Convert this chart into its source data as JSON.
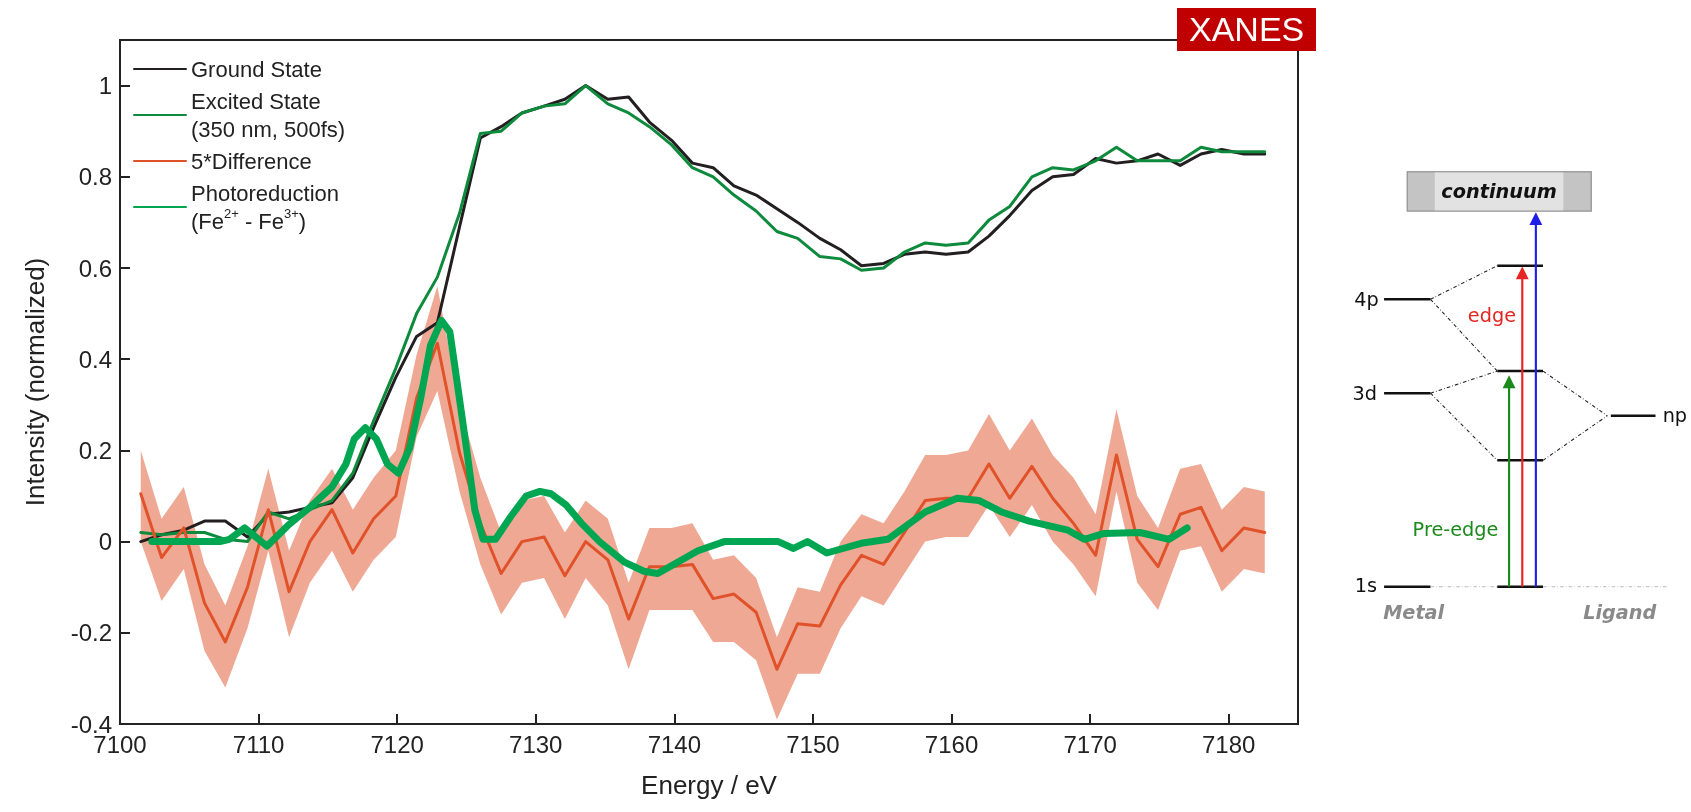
{
  "chart_data": {
    "type": "line",
    "xlabel": "Energy / eV",
    "ylabel": "Intensity (normalized)",
    "xlim": [
      7100,
      7185
    ],
    "xticks": [
      7100,
      7110,
      7120,
      7130,
      7140,
      7150,
      7160,
      7170,
      7180
    ],
    "ylim": [
      -0.4,
      1.1
    ],
    "yticks": [
      -0.4,
      -0.2,
      0,
      0.2,
      0.4,
      0.6,
      0.8,
      1
    ],
    "grid": false,
    "legend": "top left",
    "marker": "none",
    "line_style": "solid",
    "x": [
      7101.5,
      7103.0,
      7104.6,
      7106.1,
      7107.6,
      7109.2,
      7110.7,
      7112.2,
      7113.7,
      7115.3,
      7116.8,
      7118.3,
      7119.9,
      7121.4,
      7122.9,
      7124.5,
      7126.0,
      7127.5,
      7129.0,
      7130.6,
      7132.1,
      7133.6,
      7135.2,
      7136.7,
      7138.2,
      7139.8,
      7141.3,
      7142.8,
      7144.3,
      7145.9,
      7147.4,
      7148.9,
      7150.5,
      7152.0,
      7153.5,
      7155.1,
      7156.6,
      7158.1,
      7159.6,
      7161.2,
      7162.7,
      7164.2,
      7165.8,
      7167.3,
      7168.8,
      7170.4,
      7171.9,
      7173.4,
      7174.9,
      7176.5,
      7178.0,
      7179.5,
      7181.1,
      7182.6
    ],
    "series": [
      {
        "name": "Ground State",
        "color": "#231f20",
        "values": [
          0.0,
          0.015,
          0.025,
          0.045,
          0.045,
          0.01,
          0.06,
          0.065,
          0.075,
          0.085,
          0.14,
          0.25,
          0.36,
          0.45,
          0.48,
          0.69,
          0.885,
          0.91,
          0.94,
          0.955,
          0.97,
          1.0,
          0.97,
          0.975,
          0.92,
          0.88,
          0.83,
          0.82,
          0.78,
          0.76,
          0.73,
          0.7,
          0.665,
          0.64,
          0.605,
          0.61,
          0.63,
          0.635,
          0.63,
          0.635,
          0.67,
          0.715,
          0.77,
          0.8,
          0.805,
          0.84,
          0.83,
          0.835,
          0.85,
          0.825,
          0.85,
          0.86,
          0.85,
          0.85
        ]
      },
      {
        "name": "Excited State\n(350 nm, 500fs)",
        "color": "#0e8a3c",
        "values": [
          0.02,
          0.015,
          0.02,
          0.02,
          0.005,
          0.0,
          0.065,
          0.05,
          0.07,
          0.09,
          0.15,
          0.265,
          0.38,
          0.5,
          0.58,
          0.72,
          0.895,
          0.9,
          0.94,
          0.955,
          0.96,
          1.0,
          0.96,
          0.94,
          0.91,
          0.87,
          0.82,
          0.8,
          0.76,
          0.725,
          0.68,
          0.665,
          0.625,
          0.62,
          0.595,
          0.6,
          0.635,
          0.655,
          0.65,
          0.655,
          0.705,
          0.735,
          0.8,
          0.82,
          0.815,
          0.835,
          0.865,
          0.835,
          0.835,
          0.835,
          0.865,
          0.855,
          0.855,
          0.855
        ]
      },
      {
        "name": "5*Difference",
        "color": "#e0522a",
        "values": [
          0.105,
          -0.035,
          0.03,
          -0.135,
          -0.22,
          -0.1,
          0.07,
          -0.11,
          0.0,
          0.07,
          -0.025,
          0.05,
          0.1,
          0.315,
          0.435,
          0.195,
          0.04,
          -0.07,
          0.0,
          0.01,
          -0.075,
          0.0,
          -0.04,
          -0.17,
          -0.055,
          -0.055,
          -0.05,
          -0.125,
          -0.115,
          -0.155,
          -0.28,
          -0.18,
          -0.185,
          -0.095,
          -0.03,
          -0.05,
          0.02,
          0.09,
          0.095,
          0.095,
          0.17,
          0.095,
          0.165,
          0.095,
          0.04,
          -0.03,
          0.19,
          0.005,
          -0.055,
          0.06,
          0.075,
          -0.02,
          0.03,
          0.02
        ],
        "upper": [
          0.2,
          0.05,
          0.12,
          -0.05,
          -0.14,
          -0.01,
          0.16,
          -0.02,
          0.09,
          0.16,
          0.07,
          0.14,
          0.2,
          0.41,
          0.56,
          0.3,
          0.14,
          0.02,
          0.09,
          0.1,
          0.02,
          0.09,
          0.05,
          -0.09,
          0.03,
          0.03,
          0.04,
          -0.04,
          -0.03,
          -0.08,
          -0.21,
          -0.1,
          -0.11,
          0.0,
          0.06,
          0.04,
          0.11,
          0.19,
          0.19,
          0.2,
          0.28,
          0.2,
          0.27,
          0.19,
          0.14,
          0.06,
          0.29,
          0.1,
          0.03,
          0.16,
          0.17,
          0.07,
          0.12,
          0.11
        ],
        "lower": [
          0.0,
          -0.13,
          -0.06,
          -0.24,
          -0.32,
          -0.19,
          -0.02,
          -0.21,
          -0.09,
          -0.02,
          -0.11,
          -0.04,
          0.01,
          0.23,
          0.33,
          0.11,
          -0.05,
          -0.16,
          -0.09,
          -0.08,
          -0.17,
          -0.08,
          -0.14,
          -0.28,
          -0.15,
          -0.15,
          -0.15,
          -0.22,
          -0.22,
          -0.26,
          -0.39,
          -0.29,
          -0.29,
          -0.19,
          -0.12,
          -0.14,
          -0.07,
          0.0,
          0.01,
          0.01,
          0.08,
          0.01,
          0.08,
          0.0,
          -0.05,
          -0.12,
          0.11,
          -0.09,
          -0.15,
          -0.02,
          -0.01,
          -0.11,
          -0.06,
          -0.07
        ]
      },
      {
        "name": "Photoreduction\n(Fe$^{2+}$ - Fe$^{3+}$)",
        "color": "#00a651",
        "x": [
          7102.3,
          7107.2,
          7107.9,
          7109.0,
          7110.6,
          7112.1,
          7113.7,
          7115.3,
          7116.3,
          7116.9,
          7117.7,
          7118.5,
          7119.3,
          7120.1,
          7120.9,
          7121.7,
          7122.4,
          7123.2,
          7123.8,
          7124.3,
          7125.0,
          7125.6,
          7126.2,
          7127.1,
          7128.2,
          7129.3,
          7130.3,
          7131.1,
          7132.2,
          7133.3,
          7134.6,
          7136.4,
          7137.8,
          7138.8,
          7141.7,
          7143.6,
          7147.5,
          7148.6,
          7149.6,
          7151.0,
          7153.6,
          7155.4,
          7158.1,
          7160.4,
          7162.0,
          7163.6,
          7165.6,
          7168.4,
          7169.6,
          7171.0,
          7173.6,
          7175.7,
          7177.0
        ],
        "values": [
          0.0,
          0.0,
          0.005,
          0.03,
          -0.01,
          0.035,
          0.075,
          0.12,
          0.17,
          0.225,
          0.25,
          0.225,
          0.17,
          0.15,
          0.205,
          0.315,
          0.43,
          0.485,
          0.46,
          0.355,
          0.205,
          0.07,
          0.005,
          0.005,
          0.055,
          0.1,
          0.11,
          0.105,
          0.08,
          0.04,
          0.0,
          -0.045,
          -0.065,
          -0.07,
          -0.02,
          0.0,
          0.0,
          -0.015,
          0.0,
          -0.025,
          -0.003,
          0.005,
          0.065,
          0.095,
          0.09,
          0.065,
          0.045,
          0.025,
          0.005,
          0.018,
          0.02,
          0.005,
          0.03
        ]
      }
    ],
    "annotations": [
      "XANES",
      "continuum",
      "4p",
      "3d",
      "np",
      "1s",
      "edge",
      "Pre-edge",
      "Metal",
      "Ligand"
    ]
  }
}
